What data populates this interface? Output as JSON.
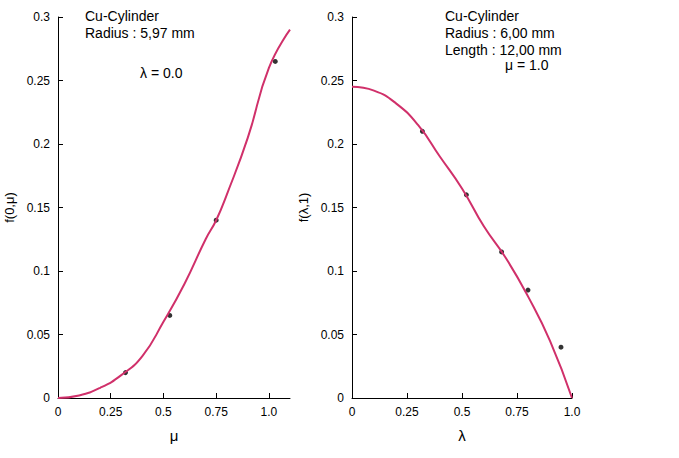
{
  "chart_data": [
    {
      "type": "line",
      "title": "Cu-Cylinder",
      "subtitle": [
        "Radius : 5,97 mm"
      ],
      "annotations": [
        "λ = 0.0"
      ],
      "x_label": "μ",
      "y_label": "f(0,μ)",
      "xlim": [
        0,
        1.1
      ],
      "xticks": [
        0,
        0.25,
        0.5,
        0.75,
        {
          "value": 1,
          "label": "1.0"
        }
      ],
      "ylim": [
        0,
        0.3
      ],
      "yticks": [
        0,
        0.05,
        0.1,
        0.15,
        0.2,
        0.25,
        0.3
      ],
      "grid": false,
      "series": [
        {
          "type": "line",
          "color": "#d0306a",
          "x": [
            0,
            0.1,
            0.2,
            0.3,
            0.4,
            0.5,
            0.6,
            0.7,
            0.75,
            0.8,
            0.9,
            1.0,
            1.1
          ],
          "values": [
            0,
            0.002,
            0.008,
            0.018,
            0.033,
            0.06,
            0.09,
            0.125,
            0.14,
            0.16,
            0.205,
            0.26,
            0.29
          ]
        },
        {
          "type": "scatter",
          "color": "#000000",
          "marker": "circle",
          "x": [
            0.32,
            0.53,
            0.75,
            1.03
          ],
          "values": [
            0.02,
            0.065,
            0.14,
            0.265
          ]
        }
      ]
    },
    {
      "type": "line",
      "title": "Cu-Cylinder",
      "subtitle": [
        "Radius : 6,00 mm",
        "Length : 12,00 mm"
      ],
      "annotations": [
        "μ = 1.0"
      ],
      "x_label": "λ",
      "y_label": "f(λ,1)",
      "xlim": [
        0,
        1
      ],
      "xticks": [
        0,
        0.25,
        0.5,
        0.75,
        {
          "value": 1,
          "label": "1.0"
        }
      ],
      "ylim": [
        0,
        0.3
      ],
      "yticks": [
        0,
        0.05,
        0.1,
        0.15,
        0.2,
        0.25,
        0.3
      ],
      "grid": false,
      "series": [
        {
          "type": "line",
          "color": "#d0306a",
          "x": [
            0,
            0.1,
            0.2,
            0.3,
            0.4,
            0.5,
            0.6,
            0.7,
            0.8,
            0.9,
            1.0
          ],
          "values": [
            0.245,
            0.242,
            0.232,
            0.215,
            0.19,
            0.165,
            0.135,
            0.11,
            0.08,
            0.045,
            0
          ]
        },
        {
          "type": "scatter",
          "color": "#000000",
          "marker": "circle",
          "x": [
            0.32,
            0.52,
            0.68,
            0.8,
            0.95
          ],
          "values": [
            0.21,
            0.16,
            0.115,
            0.085,
            0.04
          ]
        }
      ]
    }
  ]
}
